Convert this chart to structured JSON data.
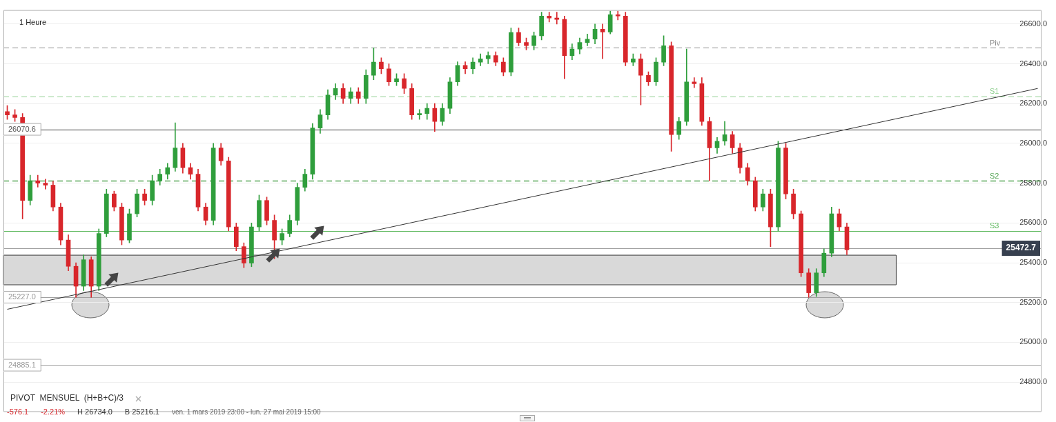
{
  "chart_data": {
    "type": "candlestick",
    "title": "1 Heure",
    "categories": [
      null,
      null,
      null,
      null,
      null,
      null,
      null,
      null,
      null,
      null,
      null,
      null,
      null,
      null,
      null,
      null,
      null,
      null,
      null,
      null,
      null,
      null,
      null,
      null,
      null,
      null,
      null,
      null,
      null,
      null,
      null,
      null,
      null,
      null,
      null,
      null,
      null,
      null,
      null,
      null,
      null,
      null,
      null,
      null,
      null,
      null,
      null,
      null,
      null,
      null,
      null,
      null,
      null,
      null,
      null,
      null,
      null,
      null,
      null,
      null,
      null,
      null,
      null,
      null,
      null,
      null,
      null,
      null,
      null,
      null,
      null,
      null,
      null,
      null,
      null,
      null,
      null,
      null,
      null,
      null,
      null,
      null,
      null,
      null,
      null,
      null,
      null,
      null,
      null,
      null,
      null,
      null,
      null,
      null,
      null,
      null,
      null,
      null,
      null,
      null,
      null,
      null,
      null,
      null,
      null,
      null,
      null,
      null,
      null,
      null,
      null,
      null,
      null,
      null,
      null,
      null,
      null,
      null,
      null,
      null,
      null,
      null,
      null,
      null,
      null,
      null,
      null,
      null,
      null,
      null,
      null,
      null,
      null,
      null,
      null,
      null
    ],
    "ohlc": [
      [
        26160,
        26190,
        26120,
        26143
      ],
      [
        26143,
        26170,
        26110,
        26130
      ],
      [
        26130,
        26150,
        25620,
        25713
      ],
      [
        25713,
        25840,
        25690,
        25812
      ],
      [
        25812,
        25840,
        25780,
        25800
      ],
      [
        25800,
        25820,
        25770,
        25790
      ],
      [
        25790,
        25810,
        25660,
        25680
      ],
      [
        25680,
        25700,
        25490,
        25514
      ],
      [
        25514,
        25540,
        25360,
        25382
      ],
      [
        25382,
        25400,
        25226,
        25282
      ],
      [
        25282,
        25440,
        25260,
        25415
      ],
      [
        25415,
        25430,
        25226,
        25282
      ],
      [
        25282,
        25570,
        25260,
        25547
      ],
      [
        25547,
        25770,
        25530,
        25746
      ],
      [
        25746,
        25760,
        25660,
        25680
      ],
      [
        25680,
        25700,
        25490,
        25514
      ],
      [
        25514,
        25670,
        25500,
        25646
      ],
      [
        25646,
        25770,
        25630,
        25746
      ],
      [
        25746,
        25770,
        25690,
        25713
      ],
      [
        25713,
        25840,
        25690,
        25812
      ],
      [
        25812,
        25870,
        25790,
        25845
      ],
      [
        25845,
        25900,
        25820,
        25878
      ],
      [
        25878,
        26103,
        25860,
        25977
      ],
      [
        25977,
        26000,
        25850,
        25878
      ],
      [
        25878,
        25900,
        25820,
        25845
      ],
      [
        25845,
        25870,
        25660,
        25680
      ],
      [
        25680,
        25700,
        25590,
        25613
      ],
      [
        25613,
        26000,
        25590,
        25977
      ],
      [
        25977,
        26000,
        25890,
        25912
      ],
      [
        25912,
        25930,
        25560,
        25580
      ],
      [
        25580,
        25600,
        25460,
        25481
      ],
      [
        25481,
        25500,
        25375,
        25398
      ],
      [
        25398,
        25600,
        25380,
        25580
      ],
      [
        25580,
        25740,
        25560,
        25713
      ],
      [
        25713,
        25730,
        25590,
        25613
      ],
      [
        25613,
        25640,
        25420,
        25514
      ],
      [
        25514,
        25570,
        25490,
        25547
      ],
      [
        25547,
        25640,
        25530,
        25613
      ],
      [
        25613,
        25800,
        25590,
        25779
      ],
      [
        25779,
        25870,
        25760,
        25845
      ],
      [
        25845,
        26100,
        25820,
        26077
      ],
      [
        26077,
        26170,
        26050,
        26143
      ],
      [
        26143,
        26270,
        26120,
        26243
      ],
      [
        26243,
        26300,
        26220,
        26276
      ],
      [
        26276,
        26300,
        26200,
        26226
      ],
      [
        26226,
        26280,
        26200,
        26259
      ],
      [
        26259,
        26280,
        26200,
        26226
      ],
      [
        26226,
        26370,
        26200,
        26342
      ],
      [
        26342,
        26480,
        26320,
        26408
      ],
      [
        26408,
        26430,
        26350,
        26375
      ],
      [
        26375,
        26400,
        26290,
        26309
      ],
      [
        26309,
        26350,
        26290,
        26325
      ],
      [
        26325,
        26350,
        26250,
        26276
      ],
      [
        26276,
        26300,
        26120,
        26143
      ],
      [
        26143,
        26170,
        26120,
        26150
      ],
      [
        26150,
        26200,
        26120,
        26176
      ],
      [
        26176,
        26200,
        26060,
        26110
      ],
      [
        26110,
        26200,
        26090,
        26176
      ],
      [
        26176,
        26330,
        26150,
        26309
      ],
      [
        26309,
        26410,
        26290,
        26392
      ],
      [
        26392,
        26410,
        26350,
        26375
      ],
      [
        26375,
        26430,
        26350,
        26408
      ],
      [
        26408,
        26450,
        26390,
        26425
      ],
      [
        26425,
        26460,
        26400,
        26441
      ],
      [
        26441,
        26460,
        26390,
        26408
      ],
      [
        26408,
        26430,
        26340,
        26358
      ],
      [
        26358,
        26580,
        26340,
        26557
      ],
      [
        26557,
        26580,
        26490,
        26507
      ],
      [
        26507,
        26530,
        26470,
        26491
      ],
      [
        26491,
        26560,
        26470,
        26541
      ],
      [
        26541,
        26660,
        26520,
        26640
      ],
      [
        26640,
        26660,
        26610,
        26630
      ],
      [
        26630,
        26660,
        26600,
        26623
      ],
      [
        26623,
        26640,
        26325,
        26441
      ],
      [
        26441,
        26500,
        26420,
        26474
      ],
      [
        26474,
        26530,
        26450,
        26507
      ],
      [
        26507,
        26550,
        26490,
        26524
      ],
      [
        26524,
        26600,
        26500,
        26574
      ],
      [
        26574,
        26600,
        26425,
        26560
      ],
      [
        26560,
        26665,
        26550,
        26647
      ],
      [
        26647,
        26665,
        26620,
        26640
      ],
      [
        26640,
        26660,
        26390,
        26408
      ],
      [
        26408,
        26450,
        26390,
        26425
      ],
      [
        26425,
        26450,
        26193,
        26342
      ],
      [
        26342,
        26360,
        26290,
        26309
      ],
      [
        26309,
        26430,
        26290,
        26408
      ],
      [
        26408,
        26541,
        26390,
        26491
      ],
      [
        26491,
        26510,
        25960,
        26044
      ],
      [
        26044,
        26130,
        26020,
        26110
      ],
      [
        26110,
        26474,
        26090,
        26309
      ],
      [
        26309,
        26330,
        26280,
        26300
      ],
      [
        26300,
        26330,
        26090,
        26110
      ],
      [
        26110,
        26130,
        25812,
        25977
      ],
      [
        25977,
        26030,
        25950,
        26011
      ],
      [
        26011,
        26110,
        25990,
        26044
      ],
      [
        26044,
        26060,
        25950,
        25977
      ],
      [
        25977,
        26000,
        25850,
        25878
      ],
      [
        25878,
        25900,
        25790,
        25812
      ],
      [
        25812,
        25830,
        25660,
        25680
      ],
      [
        25680,
        25770,
        25660,
        25746
      ],
      [
        25746,
        25770,
        25481,
        25580
      ],
      [
        25580,
        26011,
        25560,
        25977
      ],
      [
        25977,
        26000,
        25720,
        25746
      ],
      [
        25746,
        25770,
        25620,
        25646
      ],
      [
        25646,
        25660,
        25330,
        25349
      ],
      [
        25349,
        25370,
        25226,
        25249
      ],
      [
        25249,
        25370,
        25230,
        25349
      ],
      [
        25349,
        25470,
        25330,
        25448
      ],
      [
        25448,
        25680,
        25430,
        25646
      ],
      [
        25646,
        25670,
        25560,
        25580
      ],
      [
        25580,
        25600,
        25440,
        25465
      ],
      null,
      null,
      null,
      null,
      null,
      null,
      null,
      null,
      null,
      null,
      null,
      null,
      null,
      null,
      null,
      null,
      null,
      null,
      null,
      null,
      null,
      null,
      null,
      null,
      null
    ],
    "series": [
      {
        "type": "line",
        "color": "#333333",
        "values": [
          25166,
          null,
          null,
          null,
          null,
          null,
          null,
          null,
          null,
          null,
          null,
          null,
          null,
          null,
          null,
          null,
          null,
          null,
          null,
          null,
          null,
          null,
          null,
          null,
          null,
          null,
          null,
          null,
          null,
          null,
          null,
          null,
          null,
          null,
          null,
          null,
          null,
          null,
          null,
          null,
          null,
          null,
          null,
          null,
          null,
          null,
          null,
          null,
          null,
          null,
          null,
          null,
          null,
          null,
          null,
          null,
          null,
          null,
          null,
          null,
          null,
          null,
          null,
          null,
          null,
          null,
          null,
          null,
          null,
          null,
          null,
          null,
          null,
          null,
          null,
          null,
          null,
          null,
          null,
          null,
          null,
          null,
          null,
          null,
          null,
          null,
          null,
          null,
          null,
          null,
          null,
          null,
          null,
          null,
          null,
          null,
          null,
          null,
          null,
          null,
          null,
          null,
          null,
          null,
          null,
          null,
          null,
          null,
          null,
          null,
          null,
          null,
          null,
          null,
          null,
          null,
          null,
          null,
          null,
          null,
          null,
          null,
          null,
          null,
          null,
          null,
          null,
          null,
          null,
          null,
          null,
          null,
          null,
          null,
          null,
          26276
        ]
      }
    ],
    "ylim": [
      24650,
      26670
    ],
    "yticks": [
      {
        "value": 24800,
        "label": "24800.0"
      },
      {
        "value": 25000,
        "label": "25000.0"
      },
      {
        "value": 25200,
        "label": "25200.0"
      },
      {
        "value": 25400,
        "label": "25400.0"
      },
      {
        "value": 25600,
        "label": "25600.0"
      },
      {
        "value": 25800,
        "label": "25800.0"
      },
      {
        "value": 26000,
        "label": "26000.0"
      },
      {
        "value": 26200,
        "label": "26200.0"
      },
      {
        "value": 26400,
        "label": "26400.0"
      },
      {
        "value": 26600,
        "label": "26600.0"
      }
    ],
    "tick_labels": "y",
    "grid": "y",
    "legend": false,
    "bands": [
      {
        "axis": "y",
        "from": 25289,
        "to": 25438,
        "color": "#d9d9d9"
      }
    ],
    "ref_lines": [
      {
        "axis": "y",
        "value": 26070.6,
        "label": "26070.6",
        "color": "#333333",
        "line_style": "solid"
      },
      {
        "axis": "y",
        "value": 25227.0,
        "label": "25227.0",
        "color": "#a0a0a0",
        "line_style": "solid"
      },
      {
        "axis": "y",
        "value": 24885.1,
        "label": "24885.1",
        "color": "#a0a0a0",
        "line_style": "solid"
      },
      {
        "axis": "y",
        "value": 25472.7,
        "label": "25472.7",
        "color": "#a0a0a0",
        "line_style": "solid"
      },
      {
        "axis": "y",
        "value": 26481,
        "label": "Piv",
        "color": "#8a8a8a",
        "line_style": "dashed"
      },
      {
        "axis": "y",
        "value": 26236,
        "label": "S1",
        "color": "#8fcf8f",
        "line_style": "dashed"
      },
      {
        "axis": "y",
        "value": 25812,
        "label": "S2",
        "color": "#5aa85a",
        "line_style": "dashed"
      },
      {
        "axis": "y",
        "value": 25560,
        "label": "S3",
        "color": "#5cb85c",
        "line_style": "solid"
      }
    ],
    "annotations": [
      "PIVOT  MENSUEL  (H+B+C)/3",
      "-576.1",
      "-2.21%",
      "H 26734.0",
      "B 25216.1",
      "ven. 1 mars 2019 23:00 - lun. 27 mai 2019 15:00"
    ]
  }
}
